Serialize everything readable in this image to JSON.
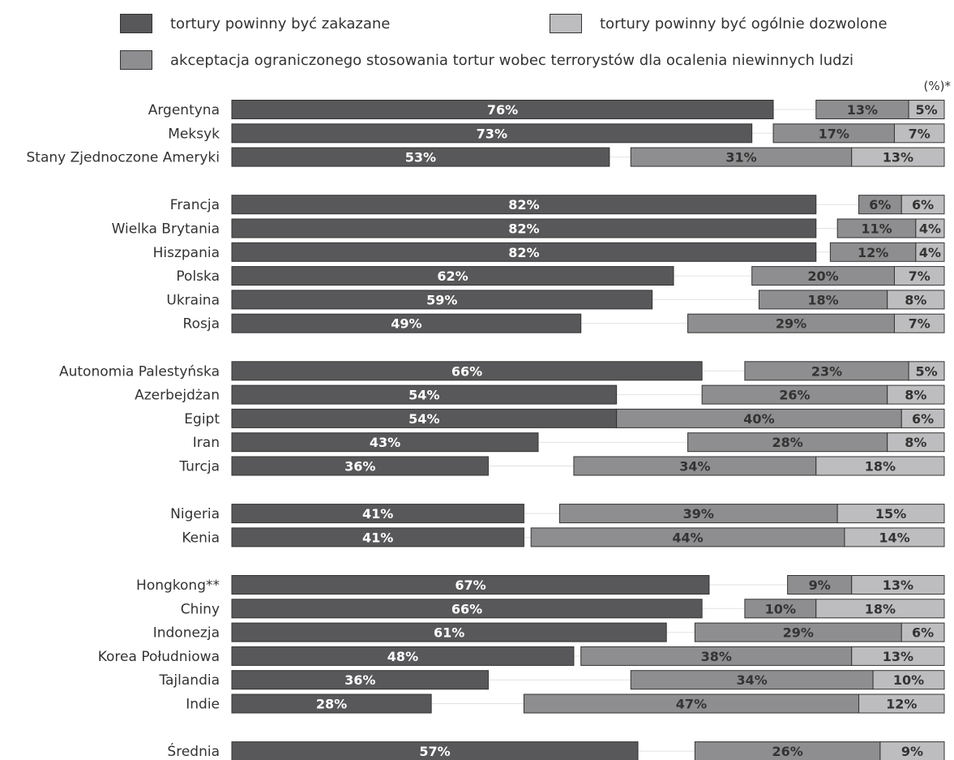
{
  "legend": {
    "banned": "tortury powinny być zakazane",
    "allowed": "tortury powinny być ogólnie dozwolone",
    "limited": "akceptacja ograniczonego stosowania tortur wobec terrorystów dla ocalenia niewinnych ludzi"
  },
  "unit": "(%)*",
  "colors": {
    "banned": "#58585a",
    "limited": "#8e8e90",
    "allowed": "#bdbdbf",
    "label_dark_bg": "#ffffff",
    "label_light_bg": "#333333"
  },
  "chart_data": {
    "type": "bar",
    "orientation": "horizontal",
    "stacked": "diverging",
    "categories": [
      "Argentyna",
      "Meksyk",
      "Stany Zjednoczone Ameryki",
      "Francja",
      "Wielka Brytania",
      "Hiszpania",
      "Polska",
      "Ukraina",
      "Rosja",
      "Autonomia Palestyńska",
      "Azerbejdżan",
      "Egipt",
      "Iran",
      "Turcja",
      "Nigeria",
      "Kenia",
      "Hongkong**",
      "Chiny",
      "Indonezja",
      "Korea Południowa",
      "Tajlandia",
      "Indie",
      "Średnia"
    ],
    "groups": [
      [
        "Argentyna",
        "Meksyk",
        "Stany Zjednoczone Ameryki"
      ],
      [
        "Francja",
        "Wielka Brytania",
        "Hiszpania",
        "Polska",
        "Ukraina",
        "Rosja"
      ],
      [
        "Autonomia Palestyńska",
        "Azerbejdżan",
        "Egipt",
        "Iran",
        "Turcja"
      ],
      [
        "Nigeria",
        "Kenia"
      ],
      [
        "Hongkong**",
        "Chiny",
        "Indonezja",
        "Korea Południowa",
        "Tajlandia",
        "Indie"
      ],
      [
        "Średnia"
      ]
    ],
    "series": [
      {
        "name": "tortury powinny być zakazane",
        "key": "banned",
        "values": [
          76,
          73,
          53,
          82,
          82,
          82,
          62,
          59,
          49,
          66,
          54,
          54,
          43,
          36,
          41,
          41,
          67,
          66,
          61,
          48,
          36,
          28,
          57
        ]
      },
      {
        "name": "akceptacja ograniczonego stosowania tortur wobec terrorystów dla ocalenia niewinnych ludzi",
        "key": "limited",
        "values": [
          13,
          17,
          31,
          6,
          11,
          12,
          20,
          18,
          29,
          23,
          26,
          40,
          28,
          34,
          39,
          44,
          9,
          10,
          29,
          38,
          34,
          47,
          26
        ]
      },
      {
        "name": "tortury powinny być ogólnie dozwolone",
        "key": "allowed",
        "values": [
          5,
          7,
          13,
          6,
          4,
          4,
          7,
          8,
          7,
          5,
          8,
          6,
          8,
          18,
          15,
          14,
          13,
          18,
          6,
          13,
          10,
          12,
          9
        ]
      }
    ],
    "xlim": [
      0,
      100
    ],
    "grid": false,
    "legend_position": "top"
  }
}
